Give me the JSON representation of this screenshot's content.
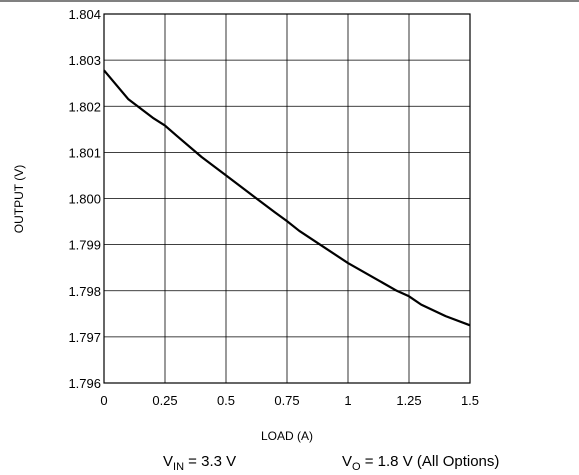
{
  "chart_data": {
    "type": "line",
    "xlabel": "LOAD (A)",
    "ylabel": "OUTPUT (V)",
    "xlim": [
      0,
      1.5
    ],
    "ylim": [
      1.796,
      1.804
    ],
    "grid": true,
    "x_ticks": [
      "0",
      "0.25",
      "0.5",
      "0.75",
      "1",
      "1.25",
      "1.5"
    ],
    "y_ticks": [
      "1.796",
      "1.797",
      "1.798",
      "1.799",
      "1.800",
      "1.801",
      "1.802",
      "1.803",
      "1.804"
    ],
    "series": [
      {
        "x": [
          0,
          0.1,
          0.2,
          0.25,
          0.3,
          0.4,
          0.5,
          0.6,
          0.7,
          0.75,
          0.8,
          0.9,
          1.0,
          1.1,
          1.2,
          1.25,
          1.3,
          1.4,
          1.5
        ],
        "y": [
          1.80278,
          1.80215,
          1.80175,
          1.80158,
          1.80135,
          1.8009,
          1.8005,
          1.8001,
          1.7997,
          1.79951,
          1.7993,
          1.79895,
          1.7986,
          1.7983,
          1.798,
          1.79788,
          1.7977,
          1.79745,
          1.79725
        ]
      }
    ],
    "conditions": {
      "vin": {
        "symbol": "V",
        "subscript": "IN",
        "text": " = 3.3 V"
      },
      "vo": {
        "symbol": "V",
        "subscript": "O",
        "text": " = 1.8 V (All Options)"
      }
    }
  }
}
